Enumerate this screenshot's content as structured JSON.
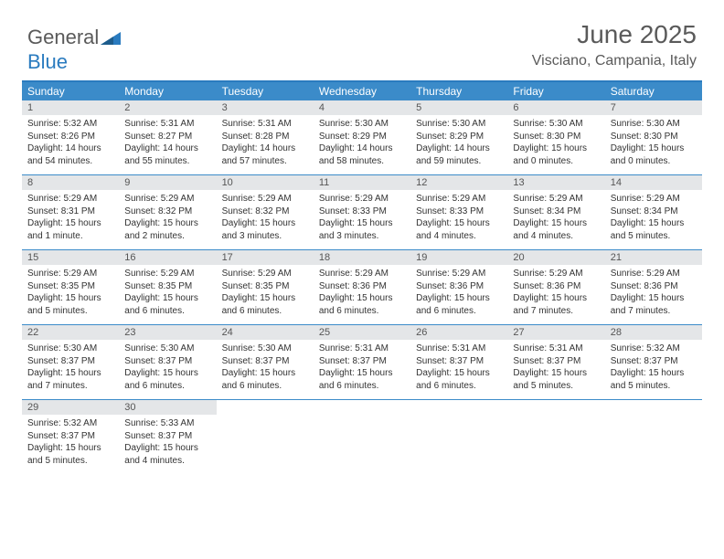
{
  "brand": {
    "part1": "General",
    "part2": "Blue"
  },
  "title": "June 2025",
  "location": "Visciano, Campania, Italy",
  "colors": {
    "header_bg": "#3b8bc9",
    "border": "#2a7bbf",
    "daynum_bg": "#e4e6e8",
    "text": "#333333",
    "title_text": "#5a5a5a"
  },
  "weekdays": [
    "Sunday",
    "Monday",
    "Tuesday",
    "Wednesday",
    "Thursday",
    "Friday",
    "Saturday"
  ],
  "calendar": {
    "start_weekday": 0,
    "days": [
      {
        "n": 1,
        "sunrise": "5:32 AM",
        "sunset": "8:26 PM",
        "daylight": "14 hours and 54 minutes."
      },
      {
        "n": 2,
        "sunrise": "5:31 AM",
        "sunset": "8:27 PM",
        "daylight": "14 hours and 55 minutes."
      },
      {
        "n": 3,
        "sunrise": "5:31 AM",
        "sunset": "8:28 PM",
        "daylight": "14 hours and 57 minutes."
      },
      {
        "n": 4,
        "sunrise": "5:30 AM",
        "sunset": "8:29 PM",
        "daylight": "14 hours and 58 minutes."
      },
      {
        "n": 5,
        "sunrise": "5:30 AM",
        "sunset": "8:29 PM",
        "daylight": "14 hours and 59 minutes."
      },
      {
        "n": 6,
        "sunrise": "5:30 AM",
        "sunset": "8:30 PM",
        "daylight": "15 hours and 0 minutes."
      },
      {
        "n": 7,
        "sunrise": "5:30 AM",
        "sunset": "8:30 PM",
        "daylight": "15 hours and 0 minutes."
      },
      {
        "n": 8,
        "sunrise": "5:29 AM",
        "sunset": "8:31 PM",
        "daylight": "15 hours and 1 minute."
      },
      {
        "n": 9,
        "sunrise": "5:29 AM",
        "sunset": "8:32 PM",
        "daylight": "15 hours and 2 minutes."
      },
      {
        "n": 10,
        "sunrise": "5:29 AM",
        "sunset": "8:32 PM",
        "daylight": "15 hours and 3 minutes."
      },
      {
        "n": 11,
        "sunrise": "5:29 AM",
        "sunset": "8:33 PM",
        "daylight": "15 hours and 3 minutes."
      },
      {
        "n": 12,
        "sunrise": "5:29 AM",
        "sunset": "8:33 PM",
        "daylight": "15 hours and 4 minutes."
      },
      {
        "n": 13,
        "sunrise": "5:29 AM",
        "sunset": "8:34 PM",
        "daylight": "15 hours and 4 minutes."
      },
      {
        "n": 14,
        "sunrise": "5:29 AM",
        "sunset": "8:34 PM",
        "daylight": "15 hours and 5 minutes."
      },
      {
        "n": 15,
        "sunrise": "5:29 AM",
        "sunset": "8:35 PM",
        "daylight": "15 hours and 5 minutes."
      },
      {
        "n": 16,
        "sunrise": "5:29 AM",
        "sunset": "8:35 PM",
        "daylight": "15 hours and 6 minutes."
      },
      {
        "n": 17,
        "sunrise": "5:29 AM",
        "sunset": "8:35 PM",
        "daylight": "15 hours and 6 minutes."
      },
      {
        "n": 18,
        "sunrise": "5:29 AM",
        "sunset": "8:36 PM",
        "daylight": "15 hours and 6 minutes."
      },
      {
        "n": 19,
        "sunrise": "5:29 AM",
        "sunset": "8:36 PM",
        "daylight": "15 hours and 6 minutes."
      },
      {
        "n": 20,
        "sunrise": "5:29 AM",
        "sunset": "8:36 PM",
        "daylight": "15 hours and 7 minutes."
      },
      {
        "n": 21,
        "sunrise": "5:29 AM",
        "sunset": "8:36 PM",
        "daylight": "15 hours and 7 minutes."
      },
      {
        "n": 22,
        "sunrise": "5:30 AM",
        "sunset": "8:37 PM",
        "daylight": "15 hours and 7 minutes."
      },
      {
        "n": 23,
        "sunrise": "5:30 AM",
        "sunset": "8:37 PM",
        "daylight": "15 hours and 6 minutes."
      },
      {
        "n": 24,
        "sunrise": "5:30 AM",
        "sunset": "8:37 PM",
        "daylight": "15 hours and 6 minutes."
      },
      {
        "n": 25,
        "sunrise": "5:31 AM",
        "sunset": "8:37 PM",
        "daylight": "15 hours and 6 minutes."
      },
      {
        "n": 26,
        "sunrise": "5:31 AM",
        "sunset": "8:37 PM",
        "daylight": "15 hours and 6 minutes."
      },
      {
        "n": 27,
        "sunrise": "5:31 AM",
        "sunset": "8:37 PM",
        "daylight": "15 hours and 5 minutes."
      },
      {
        "n": 28,
        "sunrise": "5:32 AM",
        "sunset": "8:37 PM",
        "daylight": "15 hours and 5 minutes."
      },
      {
        "n": 29,
        "sunrise": "5:32 AM",
        "sunset": "8:37 PM",
        "daylight": "15 hours and 5 minutes."
      },
      {
        "n": 30,
        "sunrise": "5:33 AM",
        "sunset": "8:37 PM",
        "daylight": "15 hours and 4 minutes."
      }
    ]
  },
  "labels": {
    "sunrise": "Sunrise:",
    "sunset": "Sunset:",
    "daylight": "Daylight:"
  },
  "typography": {
    "title_fontsize": 28,
    "location_fontsize": 16,
    "weekday_fontsize": 12,
    "daynum_fontsize": 11,
    "body_fontsize": 10
  }
}
